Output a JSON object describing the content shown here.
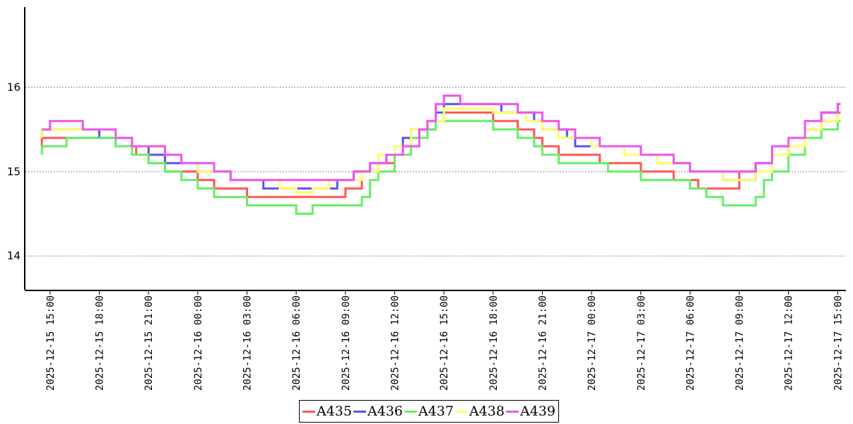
{
  "chart_data": {
    "type": "line",
    "title": "",
    "xlabel": "",
    "ylabel": "",
    "ylim": [
      13.6,
      16.95
    ],
    "yticks": [
      14,
      15,
      16
    ],
    "grid": "horizontal-dotted",
    "legend_position": "bottom-center",
    "x_start": "2025-12-15 13:30",
    "x_end": "2025-12-17 15:30",
    "x_ticks": [
      "2025-12-15 15:00",
      "2025-12-15 18:00",
      "2025-12-15 21:00",
      "2025-12-16 00:00",
      "2025-12-16 03:00",
      "2025-12-16 06:00",
      "2025-12-16 09:00",
      "2025-12-16 12:00",
      "2025-12-16 15:00",
      "2025-12-16 18:00",
      "2025-12-16 21:00",
      "2025-12-17 00:00",
      "2025-12-17 03:00",
      "2025-12-17 06:00",
      "2025-12-17 09:00",
      "2025-12-17 12:00",
      "2025-12-17 15:00"
    ],
    "series": [
      {
        "name": "A435",
        "color": "#ff5555",
        "points": [
          [
            "2025-12-15 14:30",
            15.3
          ],
          [
            "2025-12-15 14:30",
            15.4
          ],
          [
            "2025-12-15 20:00",
            15.3
          ],
          [
            "2025-12-15 20:15",
            15.2
          ],
          [
            "2025-12-15 21:00",
            15.1
          ],
          [
            "2025-12-15 22:00",
            15.0
          ],
          [
            "2025-12-16 00:00",
            14.9
          ],
          [
            "2025-12-16 01:00",
            14.8
          ],
          [
            "2025-12-16 03:00",
            14.7
          ],
          [
            "2025-12-16 09:00",
            14.8
          ],
          [
            "2025-12-16 10:00",
            15.0
          ],
          [
            "2025-12-16 11:00",
            15.1
          ],
          [
            "2025-12-16 12:00",
            15.3
          ],
          [
            "2025-12-16 13:00",
            15.5
          ],
          [
            "2025-12-16 14:00",
            15.6
          ],
          [
            "2025-12-16 15:00",
            15.7
          ],
          [
            "2025-12-16 18:00",
            15.6
          ],
          [
            "2025-12-16 19:30",
            15.5
          ],
          [
            "2025-12-16 20:30",
            15.4
          ],
          [
            "2025-12-16 21:00",
            15.3
          ],
          [
            "2025-12-16 22:00",
            15.2
          ],
          [
            "2025-12-17 00:30",
            15.1
          ],
          [
            "2025-12-17 03:00",
            15.0
          ],
          [
            "2025-12-17 05:00",
            14.9
          ],
          [
            "2025-12-17 06:30",
            14.8
          ],
          [
            "2025-12-17 09:00",
            15.0
          ],
          [
            "2025-12-17 10:00",
            15.1
          ],
          [
            "2025-12-17 11:00",
            15.2
          ],
          [
            "2025-12-17 12:00",
            15.3
          ],
          [
            "2025-12-17 13:00",
            15.5
          ],
          [
            "2025-12-17 14:00",
            15.6
          ],
          [
            "2025-12-17 15:00",
            15.7
          ]
        ]
      },
      {
        "name": "A436",
        "color": "#5555ee",
        "points": [
          [
            "2025-12-15 14:30",
            15.4
          ],
          [
            "2025-12-15 14:30",
            15.5
          ],
          [
            "2025-12-15 18:00",
            15.4
          ],
          [
            "2025-12-15 19:00",
            15.3
          ],
          [
            "2025-12-15 21:00",
            15.2
          ],
          [
            "2025-12-15 22:00",
            15.1
          ],
          [
            "2025-12-16 00:00",
            15.0
          ],
          [
            "2025-12-16 02:00",
            14.9
          ],
          [
            "2025-12-16 04:00",
            14.8
          ],
          [
            "2025-12-16 08:30",
            14.9
          ],
          [
            "2025-12-16 09:30",
            15.0
          ],
          [
            "2025-12-16 10:30",
            15.1
          ],
          [
            "2025-12-16 11:30",
            15.2
          ],
          [
            "2025-12-16 12:30",
            15.4
          ],
          [
            "2025-12-16 13:30",
            15.5
          ],
          [
            "2025-12-16 14:30",
            15.7
          ],
          [
            "2025-12-16 15:00",
            15.8
          ],
          [
            "2025-12-16 18:30",
            15.7
          ],
          [
            "2025-12-16 20:30",
            15.6
          ],
          [
            "2025-12-16 21:00",
            15.5
          ],
          [
            "2025-12-16 22:30",
            15.4
          ],
          [
            "2025-12-16 23:00",
            15.3
          ],
          [
            "2025-12-17 02:00",
            15.2
          ],
          [
            "2025-12-17 04:00",
            15.1
          ],
          [
            "2025-12-17 06:00",
            15.0
          ],
          [
            "2025-12-17 08:00",
            14.9
          ],
          [
            "2025-12-17 10:00",
            15.1
          ],
          [
            "2025-12-17 11:00",
            15.2
          ],
          [
            "2025-12-17 12:00",
            15.3
          ],
          [
            "2025-12-17 13:00",
            15.5
          ],
          [
            "2025-12-17 14:00",
            15.7
          ],
          [
            "2025-12-17 15:00",
            15.8
          ]
        ]
      },
      {
        "name": "A437",
        "color": "#66ee66",
        "points": [
          [
            "2025-12-15 14:30",
            15.2
          ],
          [
            "2025-12-15 14:30",
            15.3
          ],
          [
            "2025-12-15 16:00",
            15.4
          ],
          [
            "2025-12-15 19:00",
            15.3
          ],
          [
            "2025-12-15 20:00",
            15.2
          ],
          [
            "2025-12-15 21:00",
            15.1
          ],
          [
            "2025-12-15 22:00",
            15.0
          ],
          [
            "2025-12-15 23:00",
            14.9
          ],
          [
            "2025-12-16 00:00",
            14.8
          ],
          [
            "2025-12-16 01:00",
            14.7
          ],
          [
            "2025-12-16 03:00",
            14.6
          ],
          [
            "2025-12-16 06:00",
            14.5
          ],
          [
            "2025-12-16 07:00",
            14.6
          ],
          [
            "2025-12-16 10:00",
            14.7
          ],
          [
            "2025-12-16 10:30",
            14.9
          ],
          [
            "2025-12-16 11:00",
            15.0
          ],
          [
            "2025-12-16 12:00",
            15.2
          ],
          [
            "2025-12-16 13:00",
            15.4
          ],
          [
            "2025-12-16 14:00",
            15.5
          ],
          [
            "2025-12-16 14:30",
            15.6
          ],
          [
            "2025-12-16 18:00",
            15.5
          ],
          [
            "2025-12-16 19:30",
            15.4
          ],
          [
            "2025-12-16 20:30",
            15.3
          ],
          [
            "2025-12-16 21:00",
            15.2
          ],
          [
            "2025-12-16 22:00",
            15.1
          ],
          [
            "2025-12-17 01:00",
            15.0
          ],
          [
            "2025-12-17 03:00",
            14.9
          ],
          [
            "2025-12-17 06:00",
            14.8
          ],
          [
            "2025-12-17 07:00",
            14.7
          ],
          [
            "2025-12-17 08:00",
            14.6
          ],
          [
            "2025-12-17 10:00",
            14.7
          ],
          [
            "2025-12-17 10:30",
            14.9
          ],
          [
            "2025-12-17 11:00",
            15.0
          ],
          [
            "2025-12-17 12:00",
            15.2
          ],
          [
            "2025-12-17 13:00",
            15.4
          ],
          [
            "2025-12-17 14:00",
            15.5
          ],
          [
            "2025-12-17 15:00",
            15.6
          ]
        ]
      },
      {
        "name": "A438",
        "color": "#ffff66",
        "points": [
          [
            "2025-12-15 14:30",
            15.4
          ],
          [
            "2025-12-15 14:30",
            15.5
          ],
          [
            "2025-12-15 19:00",
            15.4
          ],
          [
            "2025-12-15 20:00",
            15.3
          ],
          [
            "2025-12-15 22:00",
            15.2
          ],
          [
            "2025-12-15 23:00",
            15.1
          ],
          [
            "2025-12-16 00:00",
            15.0
          ],
          [
            "2025-12-16 02:00",
            14.9
          ],
          [
            "2025-12-16 05:00",
            14.8
          ],
          [
            "2025-12-16 06:00",
            14.75
          ],
          [
            "2025-12-16 07:00",
            14.8
          ],
          [
            "2025-12-16 08:00",
            14.9
          ],
          [
            "2025-12-16 10:00",
            15.0
          ],
          [
            "2025-12-16 11:00",
            15.2
          ],
          [
            "2025-12-16 12:00",
            15.3
          ],
          [
            "2025-12-16 13:00",
            15.5
          ],
          [
            "2025-12-16 14:00",
            15.6
          ],
          [
            "2025-12-16 15:00",
            15.75
          ],
          [
            "2025-12-16 18:00",
            15.7
          ],
          [
            "2025-12-16 20:00",
            15.6
          ],
          [
            "2025-12-16 21:00",
            15.5
          ],
          [
            "2025-12-16 22:00",
            15.4
          ],
          [
            "2025-12-17 00:00",
            15.3
          ],
          [
            "2025-12-17 02:00",
            15.2
          ],
          [
            "2025-12-17 04:00",
            15.1
          ],
          [
            "2025-12-17 06:00",
            15.0
          ],
          [
            "2025-12-17 08:00",
            14.9
          ],
          [
            "2025-12-17 10:00",
            15.0
          ],
          [
            "2025-12-17 11:00",
            15.2
          ],
          [
            "2025-12-17 12:00",
            15.3
          ],
          [
            "2025-12-17 13:00",
            15.5
          ],
          [
            "2025-12-17 14:00",
            15.6
          ],
          [
            "2025-12-17 15:00",
            15.75
          ]
        ]
      },
      {
        "name": "A439",
        "color": "#ee55ee",
        "points": [
          [
            "2025-12-15 14:30",
            15.5
          ],
          [
            "2025-12-15 15:00",
            15.6
          ],
          [
            "2025-12-15 17:00",
            15.5
          ],
          [
            "2025-12-15 19:00",
            15.4
          ],
          [
            "2025-12-15 20:00",
            15.3
          ],
          [
            "2025-12-15 22:00",
            15.2
          ],
          [
            "2025-12-15 23:00",
            15.1
          ],
          [
            "2025-12-16 01:00",
            15.0
          ],
          [
            "2025-12-16 02:00",
            14.9
          ],
          [
            "2025-12-16 09:30",
            15.0
          ],
          [
            "2025-12-16 10:30",
            15.1
          ],
          [
            "2025-12-16 11:30",
            15.2
          ],
          [
            "2025-12-16 12:30",
            15.3
          ],
          [
            "2025-12-16 13:30",
            15.5
          ],
          [
            "2025-12-16 14:00",
            15.6
          ],
          [
            "2025-12-16 14:30",
            15.8
          ],
          [
            "2025-12-16 15:00",
            15.9
          ],
          [
            "2025-12-16 16:00",
            15.8
          ],
          [
            "2025-12-16 19:30",
            15.7
          ],
          [
            "2025-12-16 21:00",
            15.6
          ],
          [
            "2025-12-16 22:00",
            15.5
          ],
          [
            "2025-12-16 23:00",
            15.4
          ],
          [
            "2025-12-17 00:30",
            15.3
          ],
          [
            "2025-12-17 03:00",
            15.2
          ],
          [
            "2025-12-17 05:00",
            15.1
          ],
          [
            "2025-12-17 06:00",
            15.0
          ],
          [
            "2025-12-17 09:00",
            15.0
          ],
          [
            "2025-12-17 10:00",
            15.1
          ],
          [
            "2025-12-17 11:00",
            15.3
          ],
          [
            "2025-12-17 12:00",
            15.4
          ],
          [
            "2025-12-17 13:00",
            15.6
          ],
          [
            "2025-12-17 14:00",
            15.7
          ],
          [
            "2025-12-17 15:00",
            15.8
          ]
        ]
      }
    ]
  }
}
